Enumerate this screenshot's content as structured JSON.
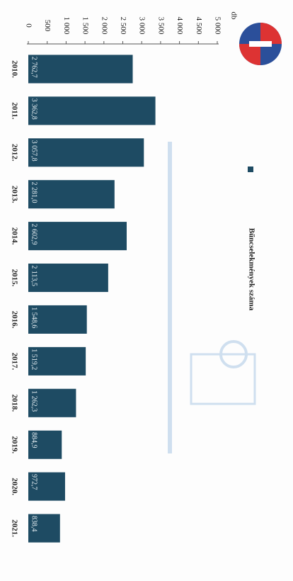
{
  "chart_data": {
    "type": "bar",
    "orientation": "horizontal",
    "value_axis_label": "db",
    "legend": "Bűncselekmények száma",
    "color": "#1e4b63",
    "categories": [
      "2010.",
      "2011.",
      "2012.",
      "2013.",
      "2014.",
      "2015.",
      "2016.",
      "2017.",
      "2018.",
      "2019.",
      "2020.",
      "2021."
    ],
    "values": [
      2762.7,
      3362.8,
      3057.8,
      2281.0,
      2602.9,
      2113.5,
      1548.6,
      1519.2,
      1262.3,
      884.9,
      972.7,
      838.4
    ],
    "value_labels": [
      "2 762,7",
      "3 362,8",
      "3 057,8",
      "2 281,0",
      "2 602,9",
      "2 113,5",
      "1 548,6",
      "1 519,2",
      "1 262,3",
      "884,9",
      "972,7",
      "838,4"
    ],
    "ylim": [
      0,
      5000
    ],
    "yticks": [
      0,
      500,
      {
        "value": 1000,
        "label": "1 000"
      },
      {
        "value": 1500,
        "label": "1 500"
      },
      {
        "value": 2000,
        "label": "2 000"
      },
      {
        "value": 2500,
        "label": "2 500"
      },
      {
        "value": 3000,
        "label": "3 000"
      },
      {
        "value": 3500,
        "label": "3 500"
      },
      {
        "value": 4000,
        "label": "4 000"
      },
      {
        "value": 4500,
        "label": "4 500"
      },
      {
        "value": 5000,
        "label": "5 000"
      }
    ],
    "grid": false
  }
}
